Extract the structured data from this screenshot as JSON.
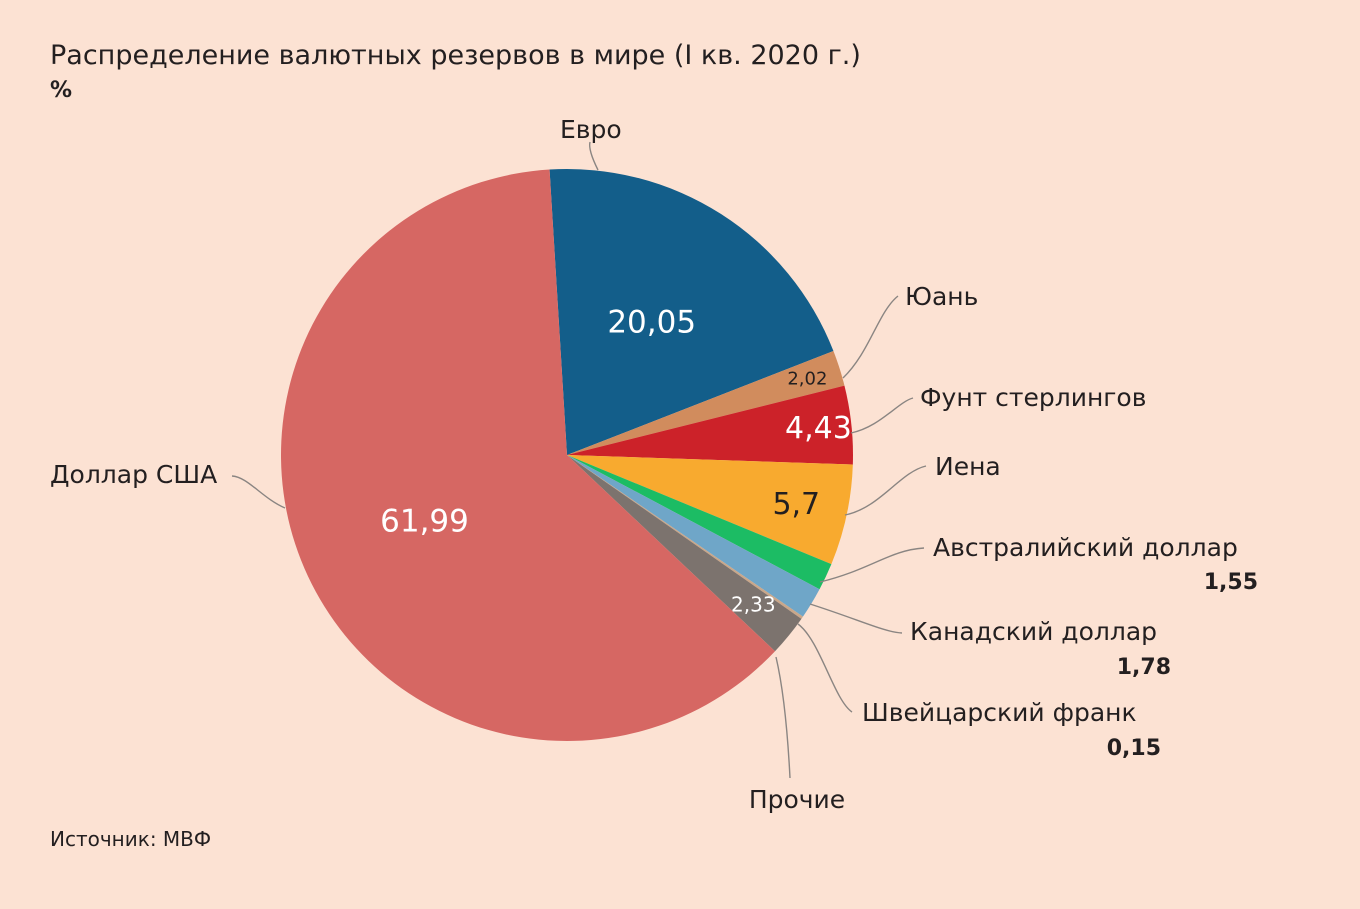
{
  "header": {
    "title": "Распределение валютных резервов в мире (I кв. 2020 г.)",
    "unit": "%"
  },
  "footer": {
    "source": "Источник: МВФ"
  },
  "chart_data": {
    "type": "pie",
    "title": "Распределение валютных резервов в мире (I кв. 2020 г.)",
    "unit": "%",
    "start_angle_deg": -3.5,
    "direction": "clockwise",
    "slices": [
      {
        "label": "Евро",
        "value": 20.05,
        "display": "20,05",
        "color": "#135e8a",
        "value_color": "#ffffff"
      },
      {
        "label": "Юань",
        "value": 2.02,
        "display": "2,02",
        "color": "#d18c5d",
        "value_color": "#231f20"
      },
      {
        "label": "Фунт стерлингов",
        "value": 4.43,
        "display": "4,43",
        "color": "#cc2229",
        "value_color": "#ffffff"
      },
      {
        "label": "Иена",
        "value": 5.7,
        "display": "5,7",
        "color": "#f8aa2f",
        "value_color": "#231f20"
      },
      {
        "label": "Австралийский доллар",
        "value": 1.55,
        "display": "1,55",
        "color": "#1cbc64",
        "value_color": "#231f20"
      },
      {
        "label": "Канадский доллар",
        "value": 1.78,
        "display": "1,78",
        "color": "#6fa6c8",
        "value_color": "#231f20"
      },
      {
        "label": "Швейцарский франк",
        "value": 0.15,
        "display": "0,15",
        "color": "#c9a78a",
        "value_color": "#231f20"
      },
      {
        "label": "Прочие",
        "value": 2.33,
        "display": "2,33",
        "color": "#7c736e",
        "value_color": "#ffffff"
      },
      {
        "label": "Доллар США",
        "value": 61.99,
        "display": "61,99",
        "color": "#d66763",
        "value_color": "#ffffff"
      }
    ]
  }
}
